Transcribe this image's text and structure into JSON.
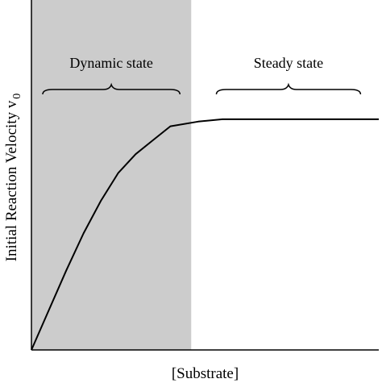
{
  "chart_data": {
    "type": "line",
    "title": "",
    "xlabel": "[Substrate]",
    "ylabel": "Initial Reaction Velocity v",
    "ylabel_subscript": "0",
    "x_ticks": "none",
    "y_ticks": "none",
    "grid": false,
    "series": [
      {
        "x": [
          0,
          0.05,
          0.1,
          0.15,
          0.2,
          0.25,
          0.3,
          0.35,
          0.4,
          0.48,
          0.55,
          0.65,
          0.75,
          0.85,
          0.95,
          1.0
        ],
        "y": [
          0,
          0.17,
          0.34,
          0.5,
          0.64,
          0.76,
          0.84,
          0.9,
          0.96,
          0.98,
          0.99,
          0.99,
          0.99,
          0.99,
          0.99,
          0.99
        ]
      }
    ],
    "regions": [
      {
        "label": "Dynamic state",
        "x_start": 0,
        "x_end": 0.46,
        "shaded": true,
        "color": "#cccccc"
      },
      {
        "label": "Steady state",
        "x_start": 0.5,
        "x_end": 0.98,
        "shaded": false
      }
    ],
    "line_color": "#000000"
  }
}
